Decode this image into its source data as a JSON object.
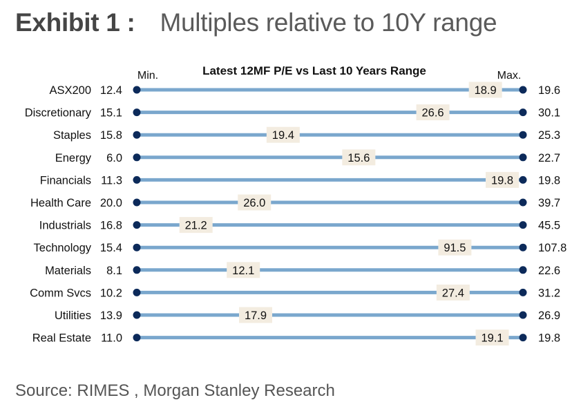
{
  "header": {
    "exhibit_label": "Exhibit 1 :",
    "title": "Multiples relative to 10Y range"
  },
  "footer": {
    "source": "Source: RIMES , Morgan Stanley Research"
  },
  "colors": {
    "bar": "#7aa7cd",
    "dot": "#0c2a5a",
    "label_bg": "#f3ece0",
    "text": "#111111"
  },
  "chart_data": {
    "type": "range",
    "title": "Latest 12MF P/E vs Last 10 Years Range",
    "min_header": "Min.",
    "max_header": "Max.",
    "rows": [
      {
        "name": "ASX200",
        "min": "12.4",
        "current": "18.9",
        "max": "19.6"
      },
      {
        "name": "Discretionary",
        "min": "15.1",
        "current": "26.6",
        "max": "30.1"
      },
      {
        "name": "Staples",
        "min": "15.8",
        "current": "19.4",
        "max": "25.3"
      },
      {
        "name": "Energy",
        "min": "6.0",
        "current": "15.6",
        "max": "22.7"
      },
      {
        "name": "Financials",
        "min": "11.3",
        "current": "19.8",
        "max": "19.8"
      },
      {
        "name": "Health Care",
        "min": "20.0",
        "current": "26.0",
        "max": "39.7"
      },
      {
        "name": "Industrials",
        "min": "16.8",
        "current": "21.2",
        "max": "45.5"
      },
      {
        "name": "Technology",
        "min": "15.4",
        "current": "91.5",
        "max": "107.8"
      },
      {
        "name": "Materials",
        "min": "8.1",
        "current": "12.1",
        "max": "22.6"
      },
      {
        "name": "Comm Svcs",
        "min": "10.2",
        "current": "27.4",
        "max": "31.2"
      },
      {
        "name": "Utilities",
        "min": "13.9",
        "current": "17.9",
        "max": "26.9"
      },
      {
        "name": "Real Estate",
        "min": "11.0",
        "current": "19.1",
        "max": "19.8"
      }
    ]
  }
}
